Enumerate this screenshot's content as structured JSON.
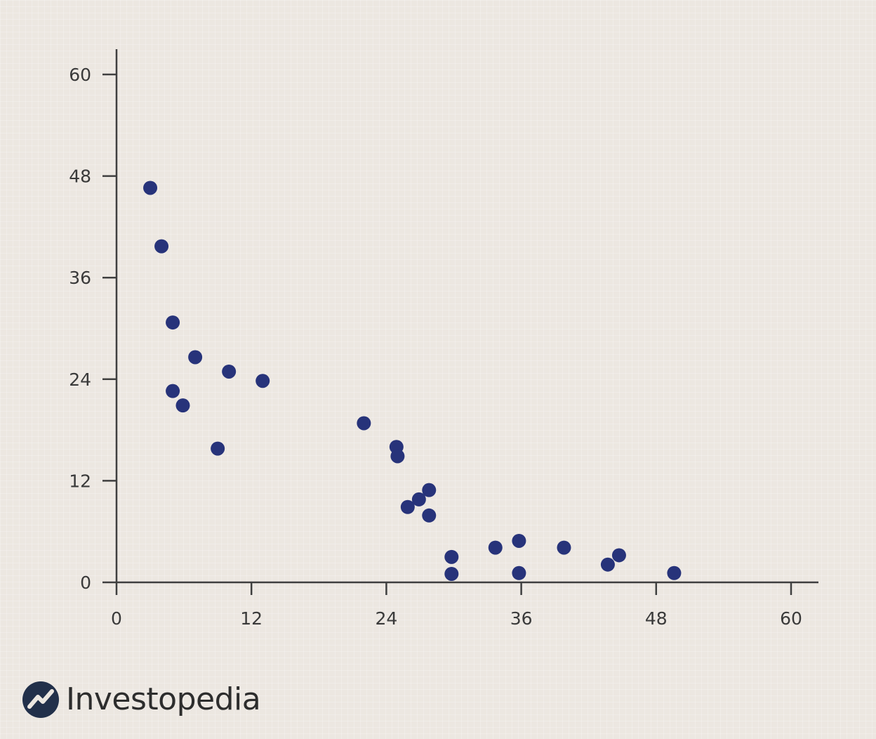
{
  "chart_data": {
    "type": "scatter",
    "title": "",
    "xlabel": "",
    "ylabel": "",
    "xlim": [
      0,
      60
    ],
    "ylim": [
      0,
      60
    ],
    "x_ticks": [
      0,
      12,
      24,
      36,
      48,
      60
    ],
    "y_ticks": [
      0,
      12,
      24,
      36,
      48,
      60
    ],
    "x_tick_labels": [
      "0",
      "12",
      "24",
      "36",
      "48",
      "60"
    ],
    "y_tick_labels": [
      "0",
      "12",
      "24",
      "36",
      "48",
      "60"
    ],
    "grid": false,
    "point_color": "#27337a",
    "points": [
      {
        "x": 3,
        "y": 46.6
      },
      {
        "x": 4,
        "y": 39.7
      },
      {
        "x": 5,
        "y": 30.7
      },
      {
        "x": 5,
        "y": 22.6
      },
      {
        "x": 5.9,
        "y": 20.9
      },
      {
        "x": 7,
        "y": 26.6
      },
      {
        "x": 9,
        "y": 15.8
      },
      {
        "x": 10,
        "y": 24.9
      },
      {
        "x": 13,
        "y": 23.8
      },
      {
        "x": 22,
        "y": 18.8
      },
      {
        "x": 24.9,
        "y": 16
      },
      {
        "x": 25,
        "y": 14.9
      },
      {
        "x": 25.9,
        "y": 8.9
      },
      {
        "x": 26.9,
        "y": 9.8
      },
      {
        "x": 27.8,
        "y": 10.9
      },
      {
        "x": 27.8,
        "y": 7.9
      },
      {
        "x": 29.8,
        "y": 3
      },
      {
        "x": 29.8,
        "y": 1
      },
      {
        "x": 33.7,
        "y": 4.1
      },
      {
        "x": 35.8,
        "y": 4.9
      },
      {
        "x": 35.8,
        "y": 1.1
      },
      {
        "x": 39.8,
        "y": 4.1
      },
      {
        "x": 43.7,
        "y": 2.1
      },
      {
        "x": 44.7,
        "y": 3.2
      },
      {
        "x": 49.6,
        "y": 1.1
      }
    ]
  },
  "brand": {
    "name": "Investopedia",
    "logo_icon": "investopedia-logo-icon",
    "logo_color": "#22304a"
  }
}
